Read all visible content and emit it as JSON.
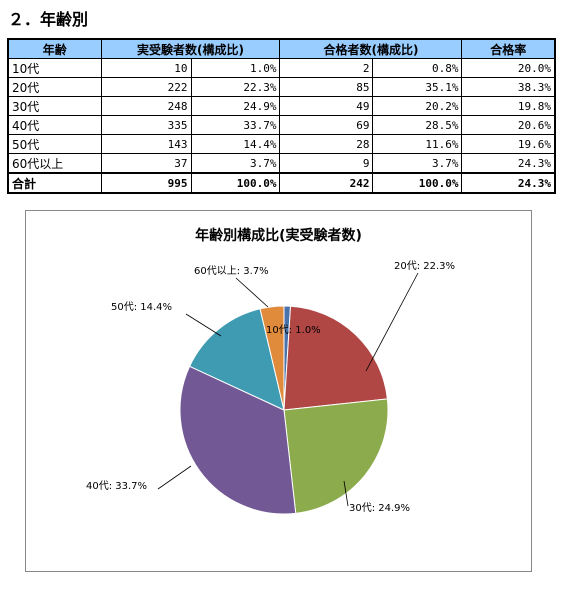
{
  "page": {
    "section_title": "２．年齢別"
  },
  "table": {
    "headers": [
      "年齢",
      "実受験者数(構成比)",
      "合格者数(構成比)",
      "合格率"
    ],
    "rows": [
      {
        "age": "10代",
        "examinees": "10",
        "examinees_pct": "1.0%",
        "passers": "2",
        "passers_pct": "0.8%",
        "pass_rate": "20.0%"
      },
      {
        "age": "20代",
        "examinees": "222",
        "examinees_pct": "22.3%",
        "passers": "85",
        "passers_pct": "35.1%",
        "pass_rate": "38.3%"
      },
      {
        "age": "30代",
        "examinees": "248",
        "examinees_pct": "24.9%",
        "passers": "49",
        "passers_pct": "20.2%",
        "pass_rate": "19.8%"
      },
      {
        "age": "40代",
        "examinees": "335",
        "examinees_pct": "33.7%",
        "passers": "69",
        "passers_pct": "28.5%",
        "pass_rate": "20.6%"
      },
      {
        "age": "50代",
        "examinees": "143",
        "examinees_pct": "14.4%",
        "passers": "28",
        "passers_pct": "11.6%",
        "pass_rate": "19.6%"
      },
      {
        "age": "60代以上",
        "examinees": "37",
        "examinees_pct": "3.7%",
        "passers": "9",
        "passers_pct": "3.7%",
        "pass_rate": "24.3%"
      }
    ],
    "total": {
      "label": "合計",
      "examinees": "995",
      "examinees_pct": "100.0%",
      "passers": "242",
      "passers_pct": "100.0%",
      "pass_rate": "24.3%"
    }
  },
  "chart_data": {
    "type": "pie",
    "title": "年齢別構成比(実受験者数)",
    "categories": [
      "10代",
      "20代",
      "30代",
      "40代",
      "50代",
      "60代以上"
    ],
    "values": [
      1.0,
      22.3,
      24.9,
      33.7,
      14.4,
      3.7
    ],
    "labels": [
      "10代: 1.0%",
      "20代: 22.3%",
      "30代: 24.9%",
      "40代: 33.7%",
      "50代: 14.4%",
      "60代以上: 3.7%"
    ],
    "colors": [
      "#4a72ab",
      "#b04744",
      "#8bab4d",
      "#725894",
      "#3e9bb2",
      "#e08a3c"
    ],
    "start_angle_deg": 0,
    "direction": "clockwise"
  }
}
